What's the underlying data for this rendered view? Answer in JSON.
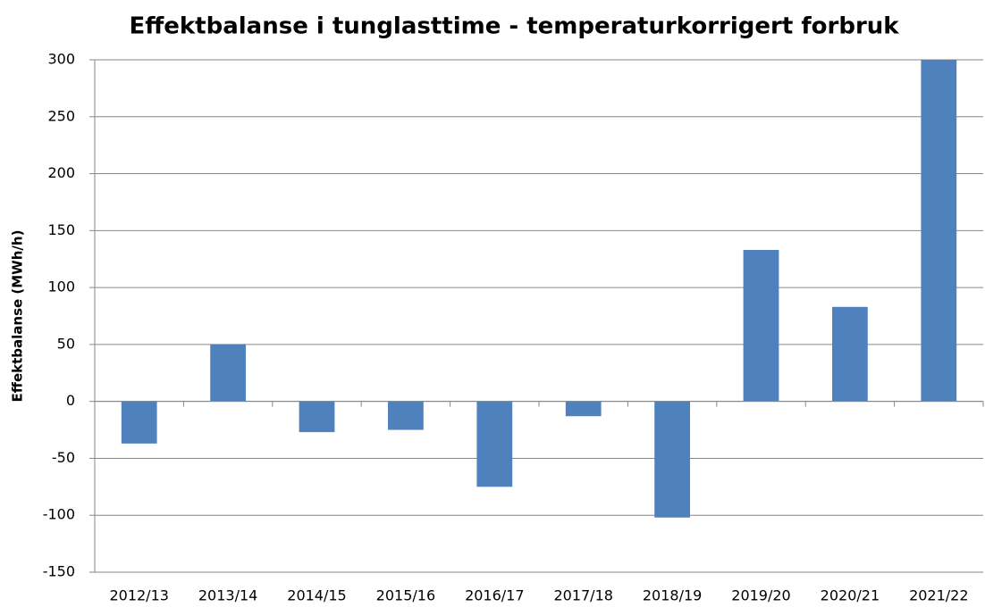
{
  "chart_data": {
    "type": "bar",
    "title": "Effektbalanse i tunglasttime - temperaturkorrigert forbruk",
    "y_label": "Effektbalanse (MWh/h)",
    "categories": [
      "2012/13",
      "2013/14",
      "2014/15",
      "2015/16",
      "2016/17",
      "2017/18",
      "2018/19",
      "2019/20",
      "2020/21",
      "2021/22"
    ],
    "values": [
      -37,
      50,
      -27,
      -25,
      -75,
      -13,
      -102,
      133,
      83,
      300
    ],
    "color": "#4f81bd",
    "ylim": [
      -150,
      300
    ],
    "yticks": [
      -150,
      -100,
      -50,
      0,
      50,
      100,
      150,
      200,
      250,
      300
    ],
    "grid": true
  }
}
